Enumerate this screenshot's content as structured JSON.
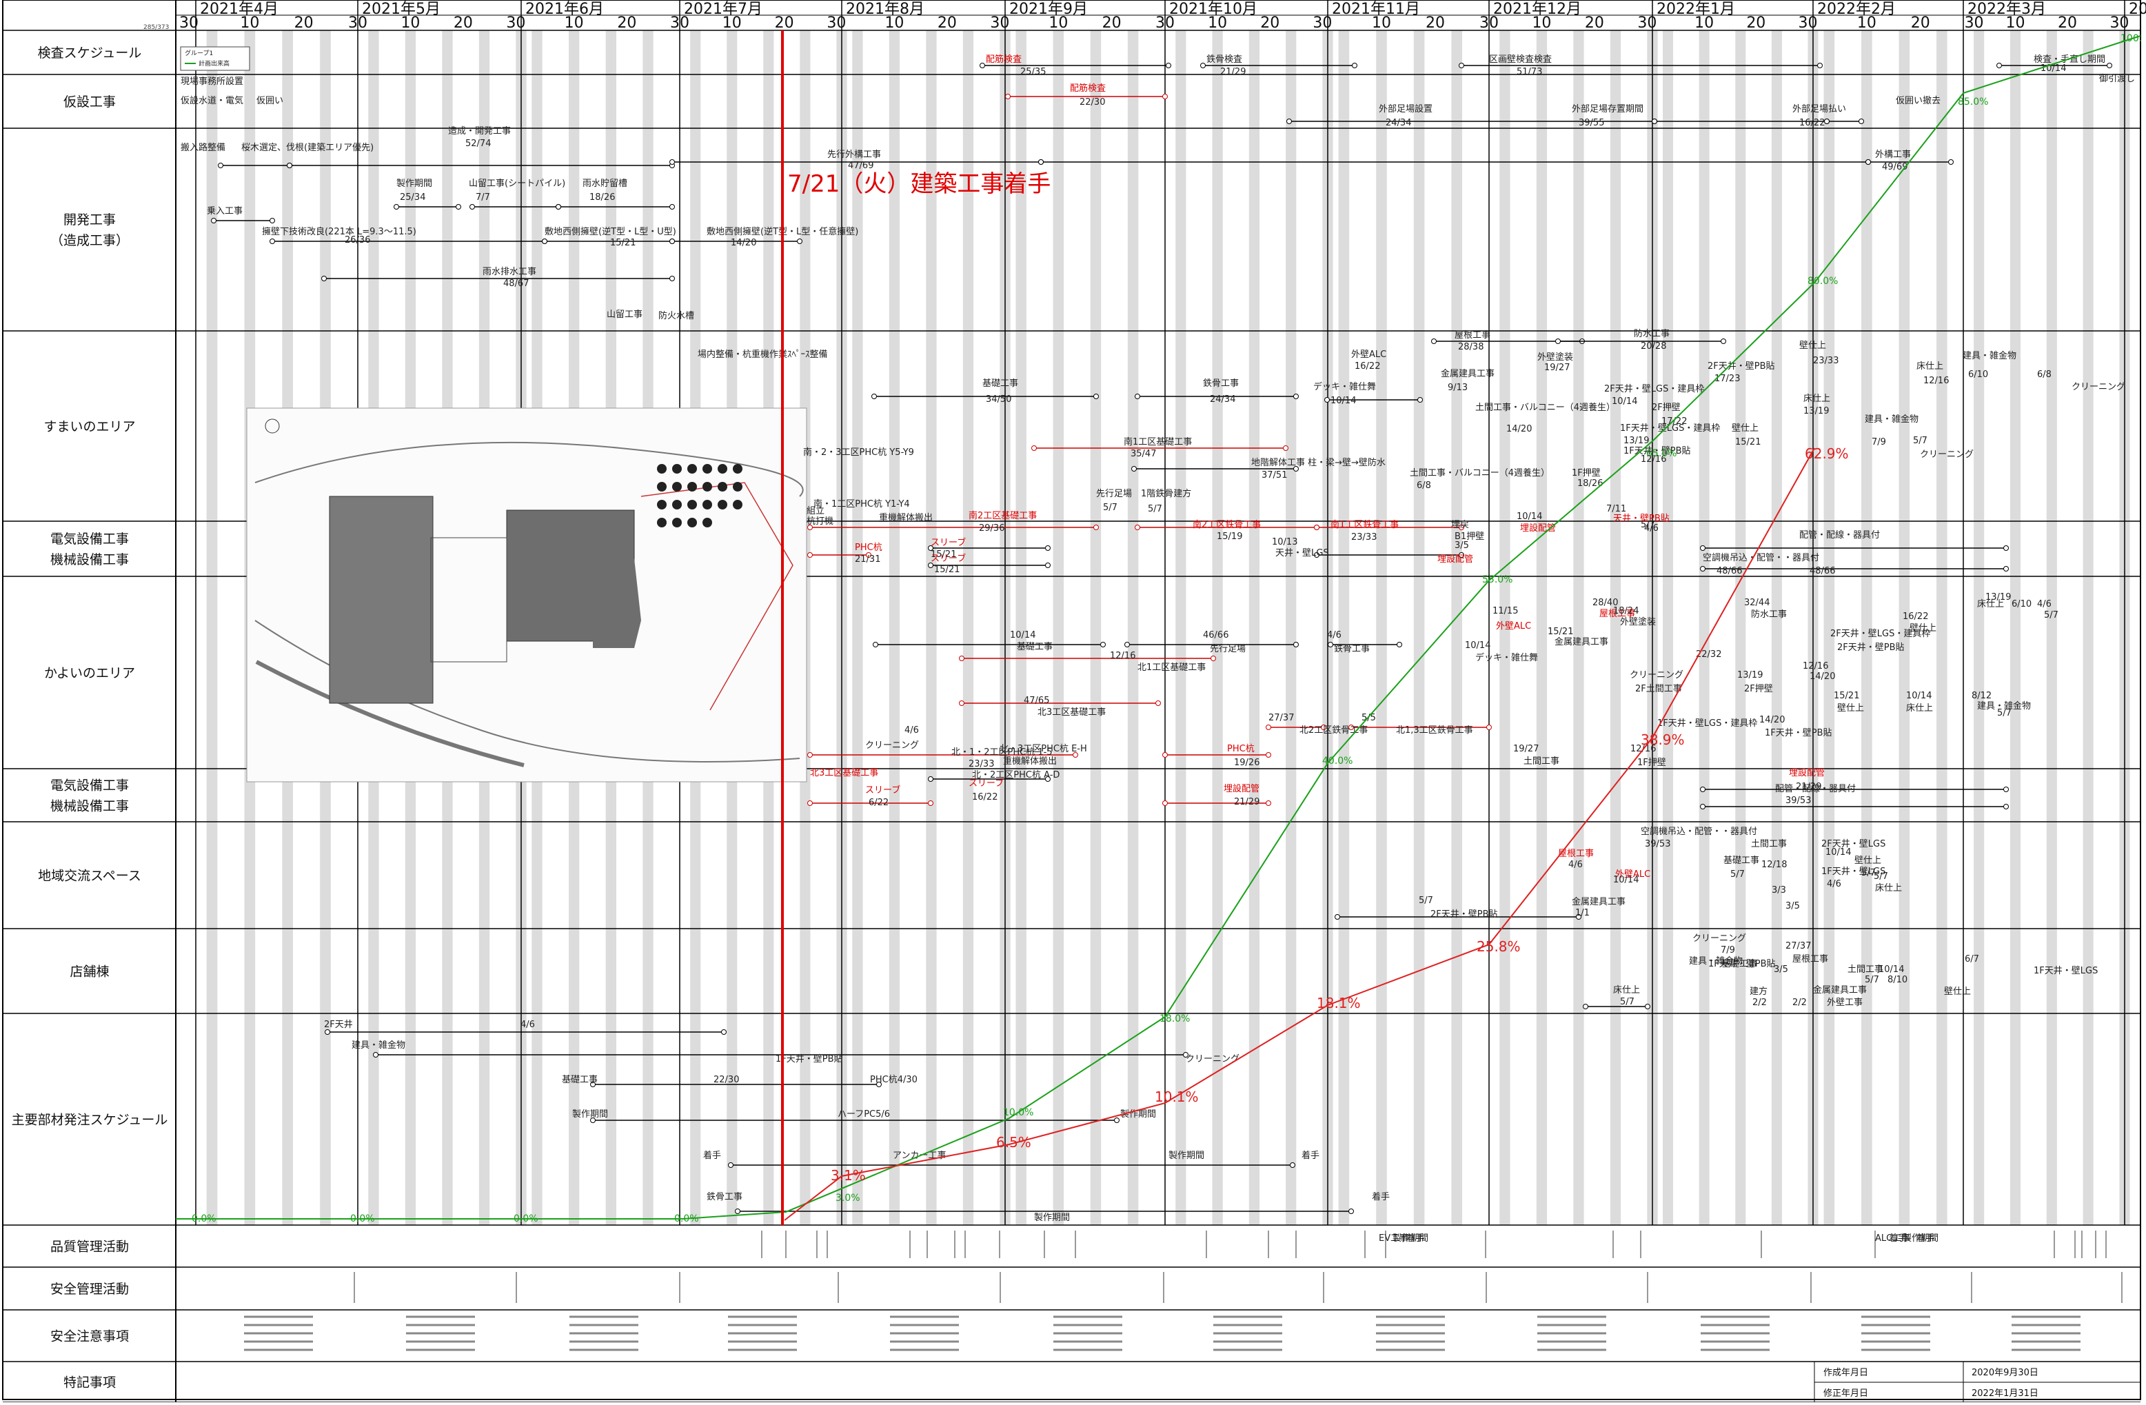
{
  "page_code": "285/373",
  "months": [
    "2021年4月",
    "2021年5月",
    "2021年6月",
    "2021年7月",
    "2021年8月",
    "2021年9月",
    "2021年10月",
    "2021年11月",
    "2021年12月",
    "2022年1月",
    "2022年2月",
    "2022年3月",
    "20"
  ],
  "day_ticks": [
    "10",
    "20",
    "30"
  ],
  "first_tick": "30",
  "rows": [
    {
      "label": "検査スケジュール"
    },
    {
      "label": "仮設工事"
    },
    {
      "label": "開発工事\n（造成工事）"
    },
    {
      "label": "すまいのエリア"
    },
    {
      "label": "電気設備工事\n機械設備工事"
    },
    {
      "label": "かよいのエリア"
    },
    {
      "label": "電気設備工事\n機械設備工事"
    },
    {
      "label": "地域交流スペース"
    },
    {
      "label": "店舗棟"
    },
    {
      "label": "主要部材発注スケジュール"
    },
    {
      "label": "品質管理活動"
    },
    {
      "label": "安全管理活動"
    },
    {
      "label": "安全注意事項"
    },
    {
      "label": "特記事項"
    }
  ],
  "legend": {
    "title": "グループ1",
    "item": "計画出来高"
  },
  "milestone": "7/21（火）建築工事着手",
  "green_pcts": [
    "0.0%",
    "0.0%",
    "0.0%",
    "0.0%",
    "3.0%",
    "10.0%",
    "18.0%",
    "40.0%",
    "55.0%",
    "65.0%",
    "80.0%",
    "85.0%",
    "100."
  ],
  "red_pcts": [
    "3.1%",
    "6.5%",
    "10.1%",
    "18.1%",
    "25.8%",
    "38.9%",
    "62.9%"
  ],
  "tasks": [
    "配筋検査",
    "25/35",
    "鉄骨検査",
    "21/29",
    "区画壁検査検査",
    "51/73",
    "検査・手直し期間",
    "10/14",
    "御引渡し",
    "現場事務所設置",
    "仮設水道・電気",
    "仮囲い",
    "配筋検査",
    "22/30",
    "外部足場設置",
    "24/34",
    "外部足場存置期間",
    "39/55",
    "外部足場払い",
    "16/22",
    "仮囲い撤去",
    "搬入路整備",
    "桜木選定、伐根(建築エリア優先)",
    "造成・開発工事",
    "52/74",
    "先行外構工事",
    "47/69",
    "外構工事",
    "49/69",
    "製作期間",
    "25/34",
    "山留工事(シートパイル)",
    "7/7",
    "雨水貯留槽",
    "18/26",
    "乗入工事",
    "擁壁下技術改良(221本 L=9.3〜11.5)",
    "26/36",
    "敷地西側擁壁(逆T型・L型・U型)",
    "15/21",
    "敷地西側擁壁(逆T型・L型・任意擁壁)",
    "14/20",
    "雨水排水工事",
    "48/67",
    "山留工事",
    "防火水槽",
    "場内整備・杭重機作業ｽﾍﾟｰｽ整備",
    "基礎工事",
    "34/50",
    "鉄骨工事",
    "24/34",
    "外壁ALC",
    "16/22",
    "屋根工事",
    "28/38",
    "外壁塗装",
    "19/27",
    "防水工事",
    "20/28",
    "デッキ・雑仕舞",
    "10/14",
    "金属建具工事",
    "9/13",
    "土間工事・バルコニー（4週養生）",
    "14/20",
    "2F天井・壁LGS・建具枠",
    "10/14",
    "2F天井・壁PB貼",
    "17/23",
    "壁仕上",
    "23/33",
    "床仕上",
    "12/16",
    "建具・雑金物",
    "6/10",
    "6/8",
    "クリーニング",
    "2F押壁",
    "17/22",
    "1F天井・壁LGS・建具枠",
    "13/19",
    "1F天井・壁PB貼",
    "12/16",
    "1F押壁",
    "18/26",
    "床仕上",
    "13/19",
    "壁仕上",
    "15/21",
    "建具・雑金物",
    "7/9",
    "5/7",
    "クリーニング",
    "南1工区基礎工事",
    "35/47",
    "地階解体工事 柱・梁→壁→壁防水",
    "37/51",
    "土間工事・バルコニー（4週養生）",
    "6/8",
    "南・2・3工区PHC杭 Y5-Y9",
    "先行足場",
    "5/7",
    "1階鉄骨建方",
    "5/7",
    "南2工区基礎工事",
    "29/36",
    "南2工区鉄骨工事",
    "15/19",
    "南1工区鉄骨工事",
    "23/33",
    "埋戻",
    "B1押壁",
    "3/5",
    "10/14",
    "埋設配管",
    "10/13",
    "天井・壁LGS",
    "7/11",
    "天井・壁PB貼",
    "5/7",
    "4/6",
    "組立",
    "杭打機",
    "南・1工区PHC杭 Y1-Y4",
    "重機解体搬出",
    "PHC杭",
    "21/31",
    "スリーブ",
    "15/21",
    "スリーブ",
    "15/21",
    "配管・配線・器具付",
    "48/66",
    "空調機吊込・配管・・器具付",
    "48/66",
    "埋設配管",
    "10/14",
    "基礎工事",
    "46/66",
    "先行足場",
    "4/6",
    "鉄骨工事",
    "28/40",
    "屋根工事",
    "32/44",
    "防水工事",
    "11/15",
    "外壁ALC",
    "18/24",
    "外壁塗装",
    "15/21",
    "金属建具工事",
    "10/14",
    "デッキ・雑仕舞",
    "12/16",
    "北1工区基礎工事",
    "47/65",
    "北3工区基礎工事",
    "27/37",
    "北2工区鉄骨工事",
    "5/5",
    "北1,3工区鉄骨工事",
    "22/32",
    "2F天井・壁LGS・建具枠",
    "2F天井・壁PB貼",
    "16/22",
    "壁仕上",
    "13/19",
    "床仕上",
    "6/10",
    "4/6",
    "5/7",
    "クリーニング",
    "2F土間工事",
    "13/19",
    "2F押壁",
    "12/16",
    "14/20",
    "1F天井・壁LGS・建具枠",
    "14/20",
    "1F天井・壁PB貼",
    "12/16",
    "1F押壁",
    "19/27",
    "土間工事",
    "15/21",
    "壁仕上",
    "10/14",
    "床仕上",
    "8/12",
    "建具・雑金物",
    "5/7",
    "4/6",
    "クリーニング",
    "北・1・2工区PHC杭 1-5",
    "北・3工区PHC杭 E-H",
    "重機解体搬出",
    "北3工区基礎工事",
    "23/33",
    "北・2工区PHC杭 A-D",
    "スリーブ",
    "16/22",
    "スリーブ",
    "6/22",
    "PHC杭",
    "19/26",
    "埋設配管",
    "21/29",
    "埋設配管",
    "21/29",
    "配管・配線・器具付",
    "39/53",
    "空調機吊込・配管・・器具付",
    "39/53",
    "屋根工事",
    "4/6",
    "外壁ALC",
    "10/14",
    "金属建具工事",
    "1/1",
    "基礎工事",
    "5/7",
    "土間工事",
    "12/18",
    "3/3",
    "2F天井・壁LGS",
    "10/14",
    "壁仕上",
    "5/7",
    "1F天井・壁LGS",
    "5/7",
    "4/6",
    "床仕上",
    "3/5",
    "5/7",
    "2F天井・壁PB貼",
    "クリーニング",
    "7/9",
    "建具・雑金物",
    "1F天井・壁PB貼",
    "基礎工事",
    "27/37",
    "屋根工事",
    "3/5",
    "建方",
    "2/2",
    "2/2",
    "外壁工事",
    "10/14",
    "金属建具工事",
    "土間工事",
    "5/7",
    "8/10",
    "6/7",
    "壁仕上",
    "1F天井・壁LGS",
    "床仕上",
    "5/7",
    "2F天井",
    "4/6",
    "建具・雑金物",
    "1F天井・壁PB貼",
    "クリーニング",
    "基礎工事",
    "22/30",
    "PHC杭4/30",
    "製作期間",
    "ハーフPC5/6",
    "製作期間",
    "着手",
    "アンカー工事",
    "製作期間",
    "着手",
    "鉄骨工事",
    "製作期間",
    "着手",
    "ALC工事",
    "着手",
    "製作期間",
    "着手",
    "EV工事",
    "製作期間",
    "着手"
  ],
  "footer": {
    "created_label": "作成年月日",
    "created_date": "2020年9月30日",
    "revised_label": "修正年月日",
    "revised_date": "2022年1月31日"
  }
}
